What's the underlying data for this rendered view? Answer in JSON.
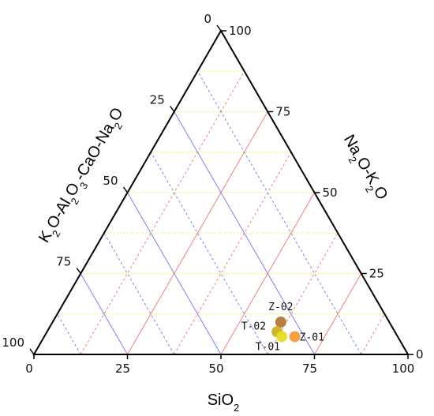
{
  "chart_data": {
    "type": "scatter",
    "subtype": "ternary",
    "components": {
      "bottom": "SiO2",
      "right": "Na2O-K2O",
      "left": "K2O-Al2O3-CaO-Na2O"
    },
    "axis_titles": {
      "bottom": [
        "SiO",
        "2",
        ""
      ],
      "right": [
        "Na",
        "2",
        "O-K",
        "2",
        "O"
      ],
      "left": [
        "K",
        "2",
        "O-Al",
        "2",
        "O",
        "3",
        "-CaO-Na",
        "2",
        "O"
      ]
    },
    "ticks": {
      "bottom": [
        "0",
        "25",
        "50",
        "75",
        "100"
      ],
      "right": [
        "0",
        "25",
        "50",
        "75",
        "100"
      ],
      "left": [
        "0",
        "25",
        "50",
        "75",
        "100"
      ]
    },
    "grid": {
      "minor_step": 12.5,
      "colors": {
        "horizontal": "#f2f25a",
        "left_parallel": "#f08080",
        "right_parallel": "#8080f0"
      }
    },
    "points": [
      {
        "label": "Z-02",
        "bottom": 61.0,
        "right": 10.0,
        "color": "#b5773c"
      },
      {
        "label": "T-02",
        "bottom": 61.5,
        "right": 7.0,
        "color": "#c9b31f"
      },
      {
        "label": "T-01",
        "bottom": 63.5,
        "right": 5.5,
        "color": "#e6dc28"
      },
      {
        "label": "Z-01",
        "bottom": 67.0,
        "right": 5.5,
        "color": "#f39c3c"
      }
    ]
  }
}
